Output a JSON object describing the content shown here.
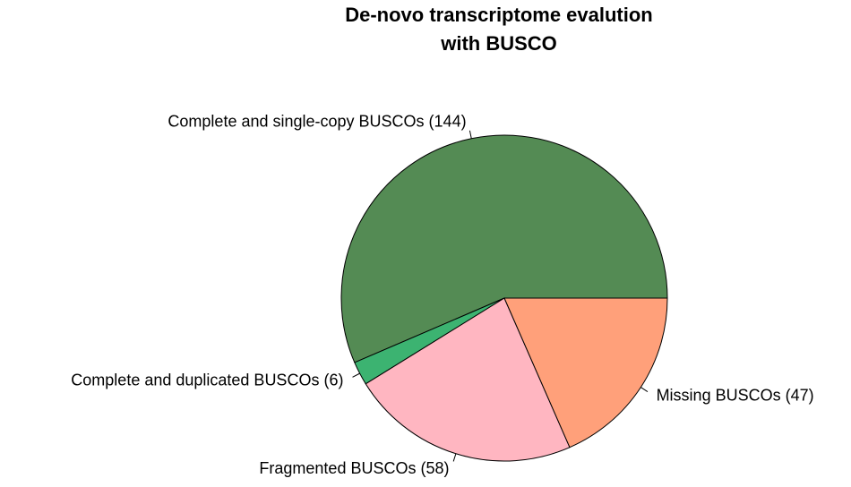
{
  "chart_data": {
    "type": "pie",
    "title": [
      "De-novo transcriptome evalution",
      "with BUSCO"
    ],
    "categories": [
      "Complete and single-copy BUSCOs (144)",
      "Complete and duplicated BUSCOs (6)",
      "Fragmented BUSCOs (58)",
      "Missing BUSCOs (47)"
    ],
    "values": [
      144,
      6,
      58,
      47
    ],
    "colors": [
      "#548b54",
      "#3cb371",
      "#ffb6c1",
      "#ffa07a"
    ],
    "start_angle": 0,
    "direction": "counterclockwise"
  }
}
